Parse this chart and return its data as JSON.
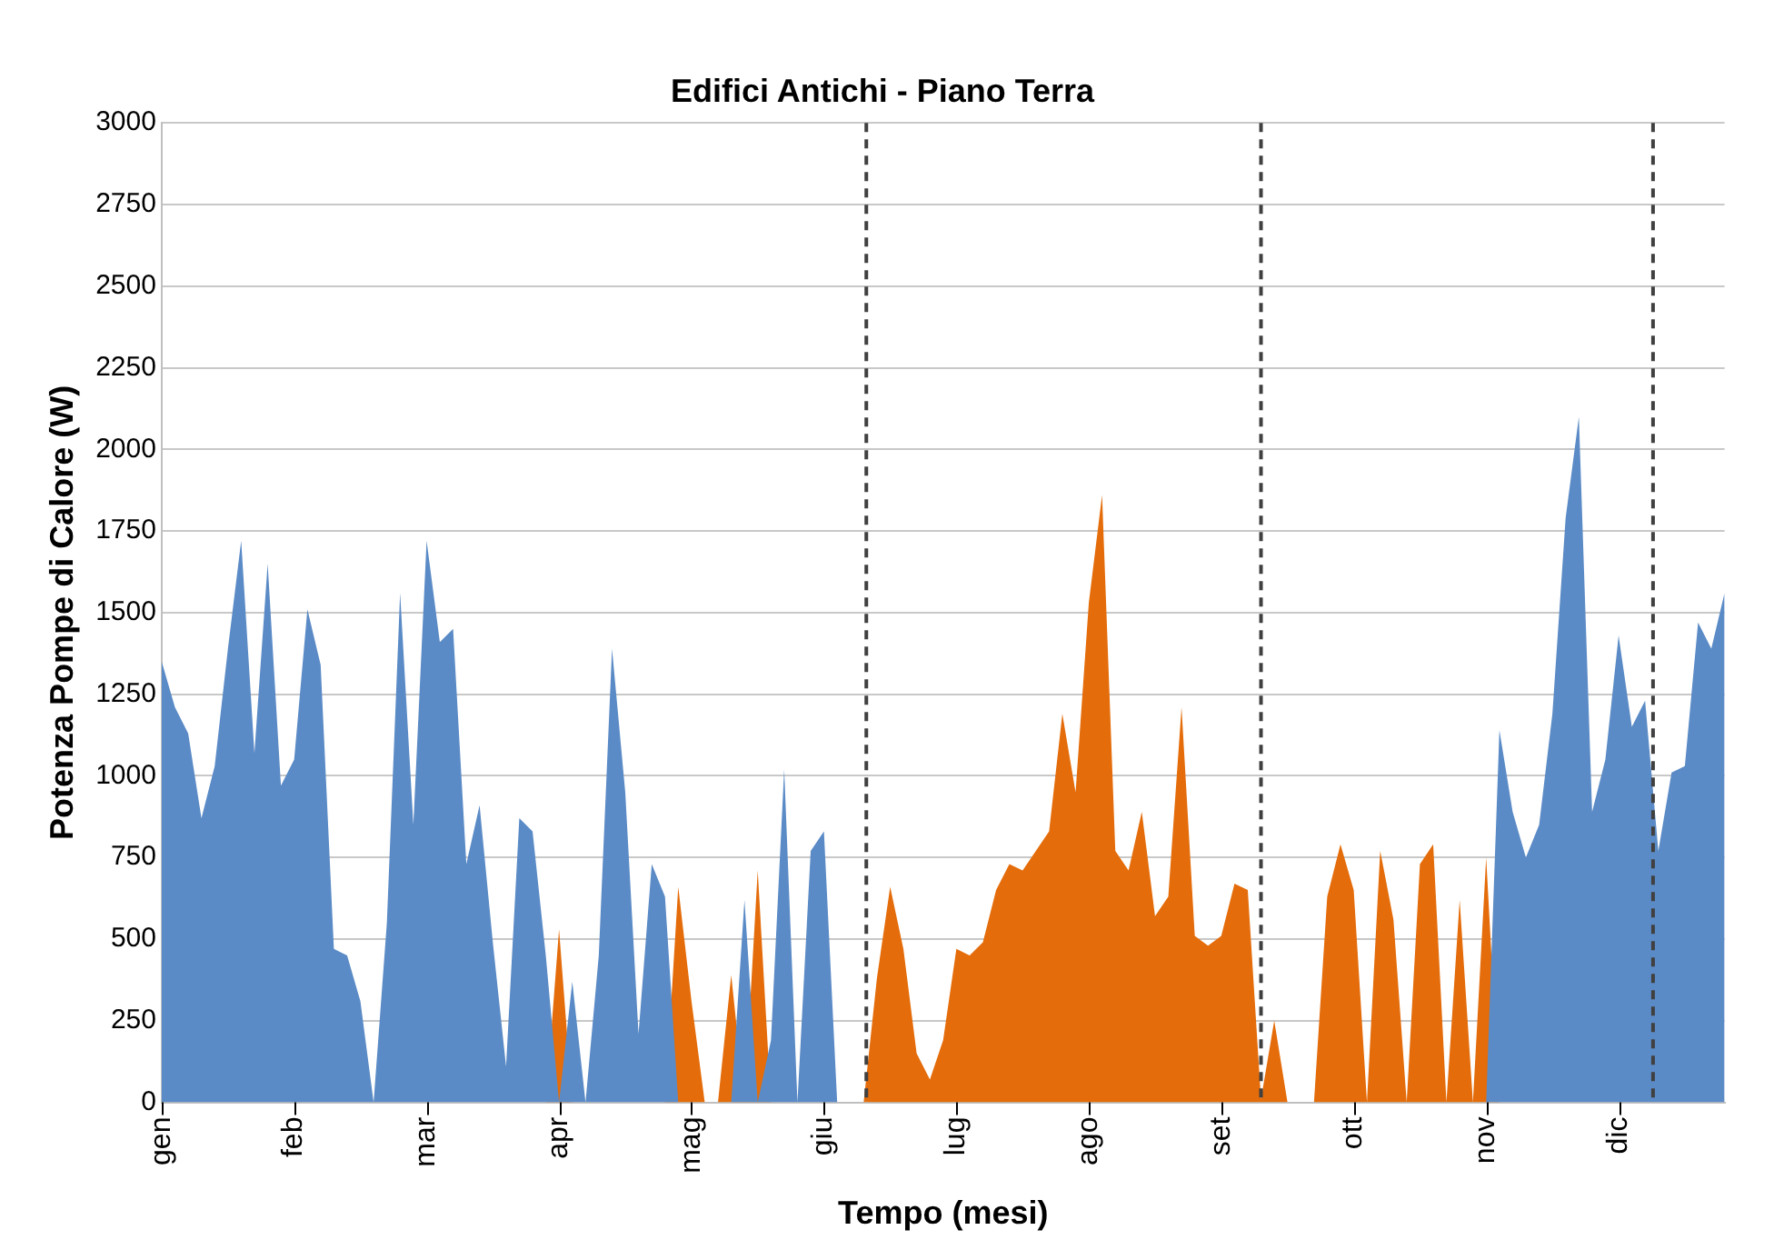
{
  "chart_data": {
    "type": "area",
    "title": "Edifici Antichi - Piano Terra",
    "xlabel": "Tempo (mesi)",
    "ylabel": "Potenza Pompe di Calore (W)",
    "categories": [
      "gen",
      null,
      null,
      null,
      null,
      null,
      null,
      null,
      null,
      null,
      "feb",
      null,
      null,
      null,
      null,
      null,
      null,
      null,
      null,
      null,
      "mar",
      null,
      null,
      null,
      null,
      null,
      null,
      null,
      null,
      null,
      "apr",
      null,
      null,
      null,
      null,
      null,
      null,
      null,
      null,
      null,
      "mag",
      null,
      null,
      null,
      null,
      null,
      null,
      null,
      null,
      null,
      "giu",
      null,
      null,
      null,
      null,
      null,
      null,
      null,
      null,
      null,
      "lug",
      null,
      null,
      null,
      null,
      null,
      null,
      null,
      null,
      null,
      "ago",
      null,
      null,
      null,
      null,
      null,
      null,
      null,
      null,
      null,
      "set",
      null,
      null,
      null,
      null,
      null,
      null,
      null,
      null,
      null,
      "ott",
      null,
      null,
      null,
      null,
      null,
      null,
      null,
      null,
      null,
      "nov",
      null,
      null,
      null,
      null,
      null,
      null,
      null,
      null,
      null,
      "dic",
      null,
      null,
      null,
      null,
      null,
      null,
      null,
      null
    ],
    "ylim": [
      0,
      3000
    ],
    "yticks": [
      0,
      250,
      500,
      750,
      1000,
      1250,
      1500,
      1750,
      2000,
      2250,
      2500,
      2750,
      3000
    ],
    "grid": "y",
    "legend": false,
    "series": [
      {
        "color": "#5b8bc6",
        "values": [
          1350,
          1210,
          1130,
          870,
          1030,
          1390,
          1720,
          1070,
          1650,
          970,
          1050,
          1510,
          1340,
          470,
          450,
          310,
          0,
          550,
          1560,
          850,
          1720,
          1410,
          1450,
          730,
          910,
          490,
          110,
          870,
          830,
          450,
          0,
          370,
          0,
          450,
          1390,
          950,
          210,
          730,
          630,
          0,
          0,
          0,
          0,
          0,
          620,
          0,
          190,
          1020,
          0,
          770,
          830,
          0,
          0,
          0,
          0,
          0,
          0,
          0,
          0,
          0,
          0,
          0,
          0,
          0,
          0,
          0,
          0,
          0,
          0,
          0,
          0,
          0,
          0,
          0,
          0,
          0,
          0,
          0,
          0,
          0,
          0,
          0,
          0,
          0,
          0,
          0,
          0,
          0,
          0,
          0,
          0,
          0,
          0,
          0,
          0,
          0,
          0,
          0,
          0,
          0,
          0,
          1140,
          890,
          750,
          850,
          1190,
          1790,
          2100,
          890,
          1050,
          1430,
          1150,
          1230,
          770,
          1010,
          1030,
          1470,
          1390,
          1560
        ]
      },
      {
        "color": "#e46c0a",
        "values": [
          0,
          0,
          0,
          0,
          0,
          0,
          0,
          0,
          0,
          0,
          0,
          0,
          0,
          0,
          0,
          0,
          0,
          0,
          0,
          0,
          0,
          0,
          0,
          0,
          0,
          0,
          0,
          0,
          0,
          0,
          530,
          0,
          0,
          0,
          0,
          0,
          0,
          0,
          0,
          660,
          310,
          0,
          0,
          390,
          0,
          710,
          0,
          0,
          0,
          0,
          0,
          0,
          0,
          0,
          380,
          660,
          470,
          150,
          70,
          190,
          470,
          450,
          490,
          650,
          730,
          710,
          770,
          830,
          1190,
          950,
          1530,
          1860,
          770,
          710,
          890,
          570,
          630,
          1210,
          510,
          480,
          510,
          670,
          650,
          10,
          250,
          0,
          0,
          0,
          630,
          790,
          650,
          0,
          770,
          560,
          0,
          730,
          790,
          0,
          620,
          0,
          750,
          0,
          0,
          0,
          0,
          0,
          0,
          0,
          0,
          0,
          0,
          0,
          0,
          0,
          0,
          0,
          0,
          0,
          0
        ]
      }
    ]
  }
}
